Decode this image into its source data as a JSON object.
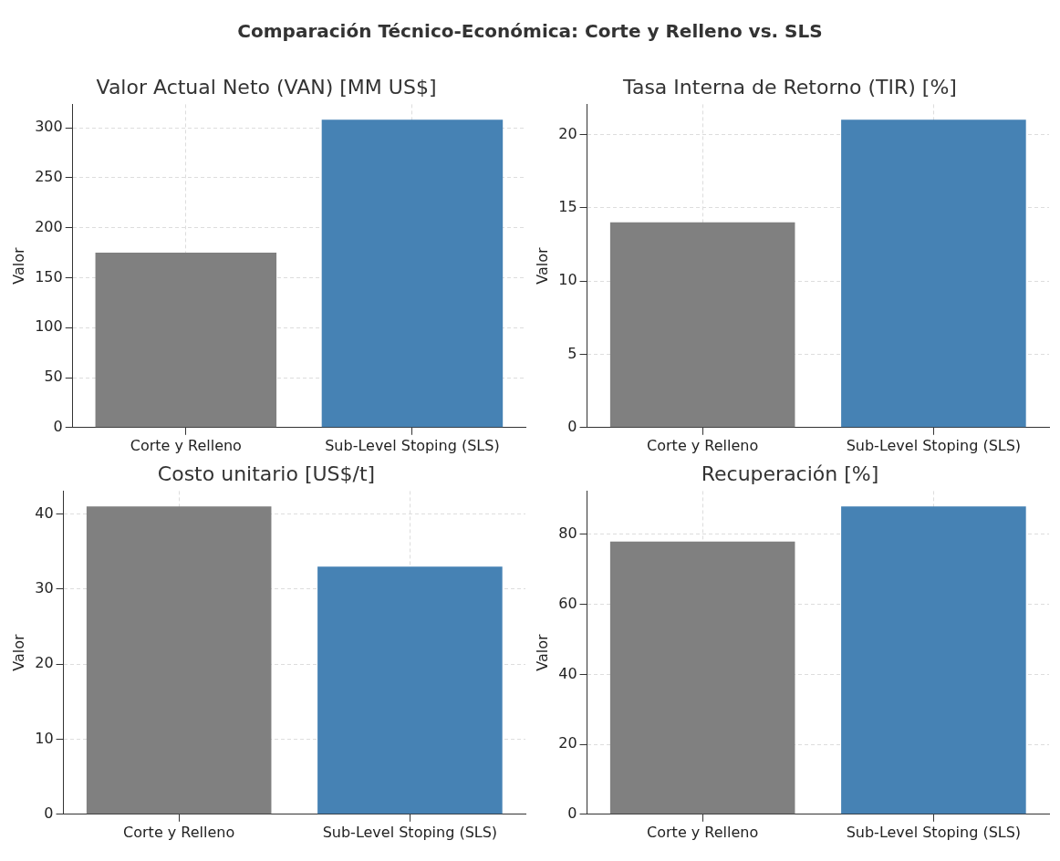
{
  "chart_data": [
    {
      "type": "bar",
      "title": "Valor Actual Neto (VAN) [MM US$]",
      "ylabel": "Valor",
      "annotations": [
        "Comparación Técnico-Económica: Corte y Relleno vs. SLS"
      ],
      "categories": [
        "Corte y Relleno",
        "Sub-Level Stoping (SLS)"
      ],
      "values": [
        175,
        308
      ],
      "colors": [
        "#808080",
        "#4682b4"
      ],
      "ylim": [
        0,
        323.4
      ],
      "yticks": [
        0,
        50,
        100,
        150,
        200,
        250,
        300
      ],
      "grid": true
    },
    {
      "type": "bar",
      "title": "Tasa Interna de Retorno (TIR) [%]",
      "ylabel": "Valor",
      "categories": [
        "Corte y Relleno",
        "Sub-Level Stoping (SLS)"
      ],
      "values": [
        14,
        21
      ],
      "colors": [
        "#808080",
        "#4682b4"
      ],
      "ylim": [
        0,
        22.05
      ],
      "yticks": [
        0,
        5,
        10,
        15,
        20
      ],
      "grid": true
    },
    {
      "type": "bar",
      "title": "Costo unitario [US$/t]",
      "ylabel": "Valor",
      "categories": [
        "Corte y Relleno",
        "Sub-Level Stoping (SLS)"
      ],
      "values": [
        41,
        33
      ],
      "colors": [
        "#808080",
        "#4682b4"
      ],
      "ylim": [
        0,
        43.05
      ],
      "yticks": [
        0,
        10,
        20,
        30,
        40
      ],
      "grid": true
    },
    {
      "type": "bar",
      "title": "Recuperación [%]",
      "ylabel": "Valor",
      "categories": [
        "Corte y Relleno",
        "Sub-Level Stoping (SLS)"
      ],
      "values": [
        78,
        88
      ],
      "colors": [
        "#808080",
        "#4682b4"
      ],
      "ylim": [
        0,
        92.4
      ],
      "yticks": [
        0,
        20,
        40,
        60,
        80
      ],
      "grid": true
    }
  ]
}
